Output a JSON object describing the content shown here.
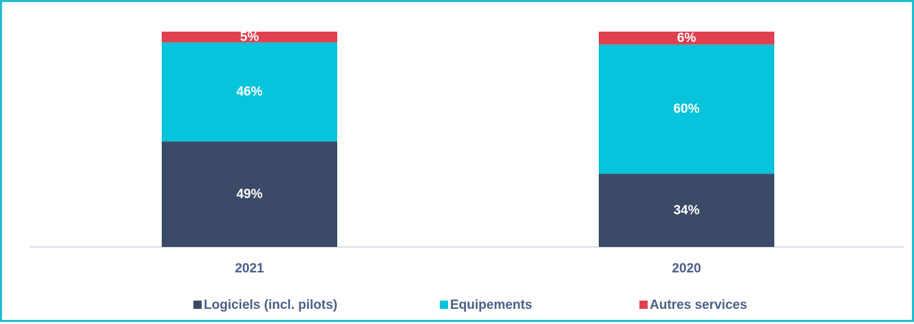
{
  "chart_data": {
    "type": "bar",
    "stacked": true,
    "percent_stacked": true,
    "categories": [
      "2021",
      "2020"
    ],
    "series": [
      {
        "name": "Logiciels (incl. pilots)",
        "values": [
          49,
          34
        ],
        "labels": [
          "49%",
          "34%"
        ],
        "color": "#3a4a67"
      },
      {
        "name": "Equipements",
        "values": [
          46,
          60
        ],
        "labels": [
          "46%",
          "60%"
        ],
        "color": "#07c3db"
      },
      {
        "name": "Autres services",
        "values": [
          5,
          6
        ],
        "labels": [
          "5%",
          "6%"
        ],
        "color": "#e0404f"
      }
    ],
    "ylim": [
      0,
      100
    ],
    "grid": false,
    "legend_position": "bottom",
    "colors": {
      "frame_border": "#1fbfcf",
      "axis_line": "#d9dee6",
      "label_text": "#4a5f8a",
      "segment_text": "#ffffff"
    }
  }
}
